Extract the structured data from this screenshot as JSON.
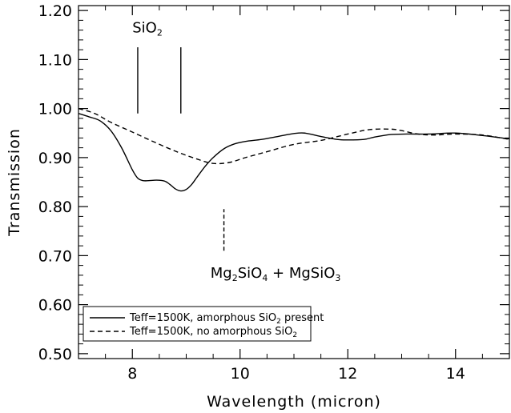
{
  "chart_data": {
    "type": "line",
    "title": "",
    "xlabel": "Wavelength (micron)",
    "ylabel": "Transmission",
    "xlim": [
      7.0,
      15.0
    ],
    "ylim": [
      0.49,
      1.21
    ],
    "x_ticks": [
      {
        "value": 8,
        "label": "8"
      },
      {
        "value": 10,
        "label": "10"
      },
      {
        "value": 12,
        "label": "12"
      },
      {
        "value": 14,
        "label": "14"
      }
    ],
    "x_minor_step": 0.5,
    "y_ticks": [
      {
        "value": 0.5,
        "label": "0.50"
      },
      {
        "value": 0.6,
        "label": "0.60"
      },
      {
        "value": 0.7,
        "label": "0.70"
      },
      {
        "value": 0.8,
        "label": "0.80"
      },
      {
        "value": 0.9,
        "label": "0.90"
      },
      {
        "value": 1.0,
        "label": "1.00"
      },
      {
        "value": 1.1,
        "label": "1.10"
      },
      {
        "value": 1.2,
        "label": "1.20"
      }
    ],
    "y_minor_step": 0.02,
    "grid": false,
    "legend_position": "bottom-left",
    "series": [
      {
        "name": "Teff=1500K, amorphous SiO present",
        "name_subscript": "2",
        "name_suffix": " present",
        "name_prefix": "Teff=1500K, amorphous SiO",
        "style": "solid",
        "x": [
          7.0,
          7.2,
          7.4,
          7.6,
          7.8,
          8.0,
          8.1,
          8.2,
          8.3,
          8.45,
          8.6,
          8.7,
          8.8,
          8.9,
          9.0,
          9.1,
          9.2,
          9.35,
          9.5,
          9.7,
          9.9,
          10.1,
          10.4,
          10.7,
          11.0,
          11.2,
          11.5,
          11.8,
          12.0,
          12.3,
          12.5,
          12.8,
          13.1,
          13.5,
          14.0,
          14.5,
          15.0
        ],
        "y": [
          0.99,
          0.983,
          0.975,
          0.955,
          0.92,
          0.875,
          0.858,
          0.853,
          0.853,
          0.854,
          0.852,
          0.845,
          0.836,
          0.832,
          0.835,
          0.845,
          0.86,
          0.882,
          0.9,
          0.918,
          0.928,
          0.933,
          0.937,
          0.943,
          0.949,
          0.95,
          0.943,
          0.937,
          0.936,
          0.937,
          0.942,
          0.947,
          0.948,
          0.948,
          0.95,
          0.945,
          0.938
        ]
      },
      {
        "name": "Teff=1500K, no amorphous SiO",
        "name_prefix": "Teff=1500K, no amorphous SiO",
        "name_subscript": "2",
        "name_suffix": "",
        "style": "dashed",
        "x": [
          7.0,
          7.3,
          7.6,
          8.0,
          8.4,
          8.8,
          9.2,
          9.5,
          9.8,
          10.1,
          10.5,
          11.0,
          11.5,
          12.0,
          12.4,
          12.8,
          13.0,
          13.3,
          13.6,
          14.0,
          14.5,
          15.0
        ],
        "y": [
          1.0,
          0.99,
          0.972,
          0.952,
          0.932,
          0.913,
          0.897,
          0.888,
          0.89,
          0.9,
          0.912,
          0.927,
          0.935,
          0.948,
          0.957,
          0.958,
          0.955,
          0.948,
          0.946,
          0.948,
          0.946,
          0.937
        ]
      }
    ],
    "annotations": [
      {
        "id": "sio2-label",
        "text": "SiO",
        "subscript": "2",
        "x": 8.0,
        "y": 1.155
      },
      {
        "id": "sio2-line-1",
        "type": "vline",
        "x": 8.1,
        "y0": 0.99,
        "y1": 1.125,
        "style": "solid"
      },
      {
        "id": "sio2-line-2",
        "type": "vline",
        "x": 8.9,
        "y0": 0.99,
        "y1": 1.125,
        "style": "solid"
      },
      {
        "id": "mg-line",
        "type": "vline",
        "x": 9.7,
        "y0": 0.71,
        "y1": 0.795,
        "style": "dashed"
      },
      {
        "id": "mg-label",
        "parts": [
          {
            "t": "Mg",
            "sub": false
          },
          {
            "t": "2",
            "sub": true
          },
          {
            "t": "SiO",
            "sub": false
          },
          {
            "t": "4",
            "sub": true
          },
          {
            "t": " + MgSiO",
            "sub": false
          },
          {
            "t": "3",
            "sub": true
          }
        ],
        "x": 9.45,
        "y": 0.655
      }
    ]
  }
}
